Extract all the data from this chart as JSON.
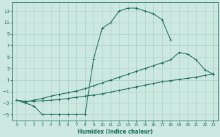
{
  "xlabel": "Humidex (Indice chaleur)",
  "bg_color": "#cce8e0",
  "line_color": "#1a6b5a",
  "grid_color": "#aacfc8",
  "text_color": "#1a6b5a",
  "xlim": [
    -0.5,
    23.5
  ],
  "ylim": [
    -6.0,
    14.5
  ],
  "xticks": [
    0,
    1,
    2,
    3,
    4,
    5,
    6,
    7,
    8,
    9,
    10,
    11,
    12,
    13,
    14,
    15,
    16,
    17,
    18,
    19,
    20,
    21,
    22,
    23
  ],
  "yticks": [
    -5,
    -3,
    -1,
    1,
    3,
    5,
    7,
    9,
    11,
    13
  ],
  "curve_top_x": [
    0,
    1,
    2,
    3,
    4,
    5,
    6,
    7,
    8,
    9,
    10,
    11,
    12,
    13,
    14,
    15,
    16,
    17,
    18
  ],
  "curve_top_y": [
    -2.5,
    -3.0,
    -3.5,
    -5.0,
    -5.0,
    -5.0,
    -5.0,
    -5.0,
    -5.0,
    4.7,
    10.0,
    11.0,
    13.0,
    13.5,
    13.5,
    13.0,
    12.5,
    11.5,
    8.0
  ],
  "curve_mid_x": [
    0,
    1,
    2,
    3,
    4,
    5,
    6,
    7,
    8,
    9,
    10,
    11,
    12,
    13,
    14,
    15,
    16,
    17,
    18,
    19,
    20,
    21,
    22,
    23
  ],
  "curve_mid_y": [
    -2.5,
    -2.8,
    -2.5,
    -2.2,
    -1.8,
    -1.5,
    -1.2,
    -0.9,
    -0.5,
    0.0,
    0.5,
    1.0,
    1.5,
    2.0,
    2.5,
    3.0,
    3.5,
    4.0,
    4.5,
    5.8,
    5.5,
    4.5,
    2.8,
    2.0
  ],
  "curve_low_x": [
    0,
    1,
    2,
    3,
    4,
    5,
    6,
    7,
    8,
    9,
    10,
    11,
    12,
    13,
    14,
    15,
    16,
    17,
    18,
    19,
    20,
    21,
    22,
    23
  ],
  "curve_low_y": [
    -2.5,
    -2.7,
    -2.7,
    -2.6,
    -2.5,
    -2.4,
    -2.2,
    -2.0,
    -1.8,
    -1.6,
    -1.4,
    -1.1,
    -0.8,
    -0.5,
    -0.2,
    0.1,
    0.4,
    0.7,
    0.9,
    1.1,
    1.3,
    1.5,
    1.8,
    2.1
  ]
}
